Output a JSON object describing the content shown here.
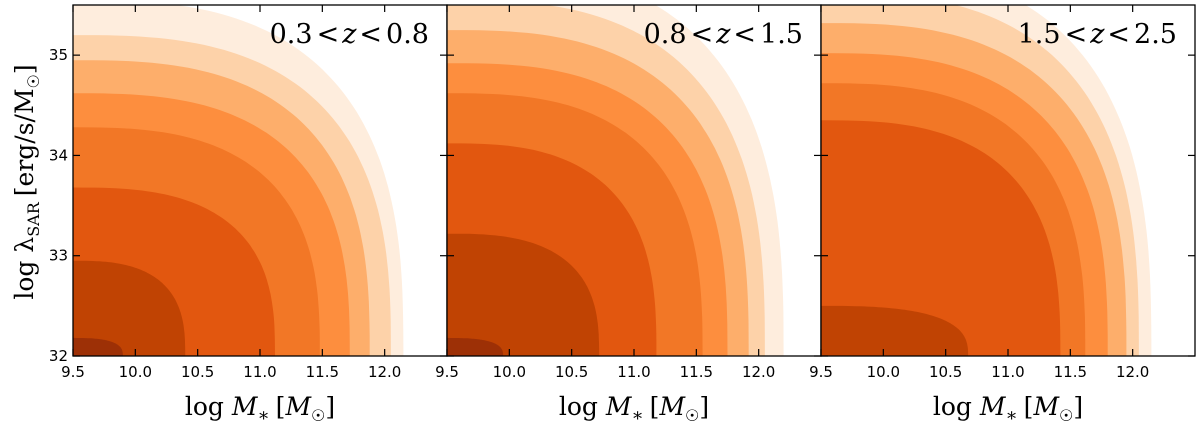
{
  "chart_data": {
    "type": "filled-contour",
    "ylabel": "log λ_SAR [erg/s/M☉]",
    "ylabel_parts": {
      "main": "log λ",
      "sub": "SAR",
      "unit": "[erg/s/M",
      "sun": "☉",
      "close": "]"
    },
    "xlabel_parts": {
      "main": "log M",
      "sub": "∗",
      "unit": "[M",
      "sun": "☉",
      "close": "]"
    },
    "xlim": [
      9.5,
      12.5
    ],
    "ylim": [
      32.0,
      35.5
    ],
    "x_ticks": [
      "9.5",
      "10.0",
      "10.5",
      "11.0",
      "11.5",
      "12.0"
    ],
    "y_ticks": [
      "32",
      "33",
      "34",
      "35"
    ],
    "contour_colors": [
      "#feeddd",
      "#fdd2a9",
      "#fdae6b",
      "#fd8e3e",
      "#f27726",
      "#e2570f",
      "#c04303",
      "#9d3006"
    ],
    "panels": [
      {
        "title": "0.3<z<0.8",
        "title_parts": {
          "lo": "0.3",
          "var": "z",
          "hi": "0.8"
        },
        "levels": [
          {
            "level": 1,
            "x_intercept": 12.15,
            "y_intercept": 35.55
          },
          {
            "level": 2,
            "x_intercept": 12.05,
            "y_intercept": 35.2
          },
          {
            "level": 3,
            "x_intercept": 11.88,
            "y_intercept": 34.95
          },
          {
            "level": 4,
            "x_intercept": 11.72,
            "y_intercept": 34.62
          },
          {
            "level": 5,
            "x_intercept": 11.48,
            "y_intercept": 34.28
          },
          {
            "level": 6,
            "x_intercept": 11.12,
            "y_intercept": 33.68
          },
          {
            "level": 7,
            "x_intercept": 10.4,
            "y_intercept": 32.95
          },
          {
            "level": 8,
            "x_intercept": 9.9,
            "y_intercept": 32.18
          }
        ]
      },
      {
        "title": "0.8<z<1.5",
        "title_parts": {
          "lo": "0.8",
          "var": "z",
          "hi": "1.5"
        },
        "levels": [
          {
            "level": 1,
            "x_intercept": 12.2,
            "y_intercept": 35.9
          },
          {
            "level": 2,
            "x_intercept": 12.05,
            "y_intercept": 35.55
          },
          {
            "level": 3,
            "x_intercept": 11.92,
            "y_intercept": 35.25
          },
          {
            "level": 4,
            "x_intercept": 11.75,
            "y_intercept": 34.92
          },
          {
            "level": 5,
            "x_intercept": 11.55,
            "y_intercept": 34.62
          },
          {
            "level": 6,
            "x_intercept": 11.18,
            "y_intercept": 34.12
          },
          {
            "level": 7,
            "x_intercept": 10.72,
            "y_intercept": 33.22
          },
          {
            "level": 8,
            "x_intercept": 9.95,
            "y_intercept": 32.18
          }
        ]
      },
      {
        "title": "1.5<z<2.5",
        "title_parts": {
          "lo": "1.5",
          "var": "z",
          "hi": "2.5"
        },
        "levels": [
          {
            "level": 1,
            "x_intercept": 12.15,
            "y_intercept": 35.9
          },
          {
            "level": 2,
            "x_intercept": 12.05,
            "y_intercept": 35.62
          },
          {
            "level": 3,
            "x_intercept": 11.95,
            "y_intercept": 35.32
          },
          {
            "level": 4,
            "x_intercept": 11.8,
            "y_intercept": 35.02
          },
          {
            "level": 5,
            "x_intercept": 11.62,
            "y_intercept": 34.72
          },
          {
            "level": 6,
            "x_intercept": 11.42,
            "y_intercept": 34.35
          },
          {
            "level": 7,
            "x_intercept": 10.68,
            "y_intercept": 32.5
          },
          {
            "level": 8,
            "x_intercept": 9.5,
            "y_intercept": 32.0
          }
        ]
      }
    ]
  }
}
